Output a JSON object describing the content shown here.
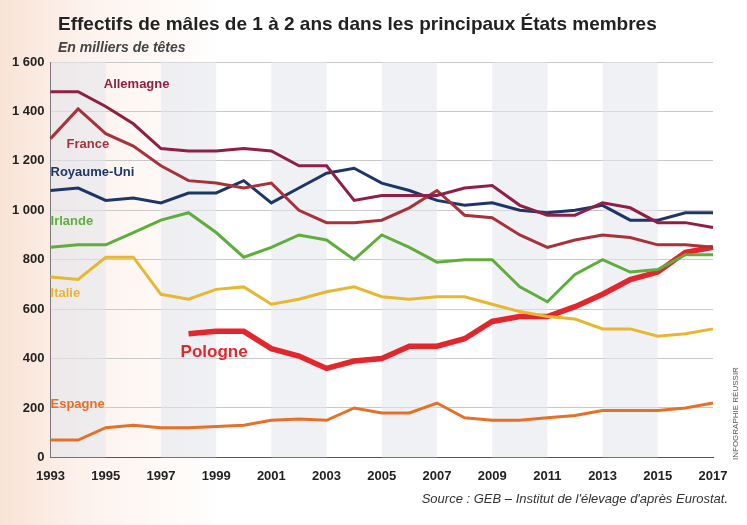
{
  "chart_data": {
    "type": "line",
    "title": "Effectifs de mâles de 1 à 2 ans dans les principaux États membres",
    "subtitle": "En milliers de têtes",
    "annotations": [
      "Source : GEB – Institut de l'élevage d'après Eurostat.",
      "Infographie Réussir"
    ],
    "categories": [
      "1993",
      null,
      "1995",
      null,
      "1997",
      null,
      "1999",
      null,
      "2001",
      null,
      "2003",
      null,
      "2005",
      null,
      "2007",
      null,
      "2009",
      null,
      "2011",
      null,
      "2013",
      null,
      "2015",
      null,
      "2017"
    ],
    "series": [
      {
        "name": "Allemagne",
        "color": "#8e1f45",
        "values": [
          1480,
          1480,
          1420,
          1350,
          1250,
          1240,
          1240,
          1250,
          1240,
          1180,
          1180,
          1040,
          1060,
          1060,
          1060,
          1090,
          1100,
          1020,
          980,
          980,
          1030,
          1010,
          950,
          950,
          930
        ]
      },
      {
        "name": "France",
        "color": "#a8323a",
        "values": [
          1290,
          1410,
          1310,
          1260,
          1180,
          1120,
          1110,
          1090,
          1110,
          1000,
          950,
          950,
          960,
          1010,
          1080,
          980,
          970,
          900,
          850,
          880,
          900,
          890,
          860,
          860,
          850
        ]
      },
      {
        "name": "Royaume-Uni",
        "color": "#1c3767",
        "values": [
          1080,
          1090,
          1040,
          1050,
          1030,
          1070,
          1070,
          1120,
          1030,
          1090,
          1150,
          1170,
          1110,
          1080,
          1040,
          1020,
          1030,
          1000,
          990,
          1000,
          1020,
          960,
          960,
          990,
          990
        ]
      },
      {
        "name": "Irlande",
        "color": "#5fae3c",
        "values": [
          850,
          860,
          860,
          910,
          960,
          990,
          910,
          810,
          850,
          900,
          880,
          800,
          900,
          850,
          790,
          800,
          800,
          690,
          630,
          740,
          800,
          750,
          760,
          820,
          820
        ]
      },
      {
        "name": "Italie",
        "color": "#e8b731",
        "values": [
          730,
          720,
          810,
          810,
          660,
          640,
          680,
          690,
          620,
          640,
          670,
          690,
          650,
          640,
          650,
          650,
          620,
          590,
          570,
          560,
          520,
          520,
          490,
          500,
          520
        ]
      },
      {
        "name": "Pologne",
        "color": "#e2262b",
        "values": [
          null,
          null,
          null,
          null,
          null,
          500,
          510,
          510,
          440,
          410,
          360,
          390,
          400,
          450,
          450,
          480,
          550,
          570,
          570,
          610,
          660,
          720,
          750,
          830,
          850
        ]
      },
      {
        "name": "Espagne",
        "color": "#e5702a",
        "values": [
          70,
          70,
          120,
          130,
          120,
          120,
          125,
          130,
          150,
          155,
          150,
          200,
          180,
          180,
          220,
          160,
          150,
          150,
          160,
          170,
          190,
          190,
          190,
          200,
          220
        ]
      }
    ],
    "ylim": [
      0,
      1600
    ],
    "yticks": [
      0,
      {
        "value": 200,
        "label": "200"
      },
      400,
      600,
      800,
      {
        "value": 1000,
        "label": "1 000"
      },
      {
        "value": 1200,
        "label": "1 200"
      },
      {
        "value": 1400,
        "label": "1 400"
      },
      {
        "value": 1600,
        "label": "1 600"
      }
    ],
    "grid": true
  }
}
